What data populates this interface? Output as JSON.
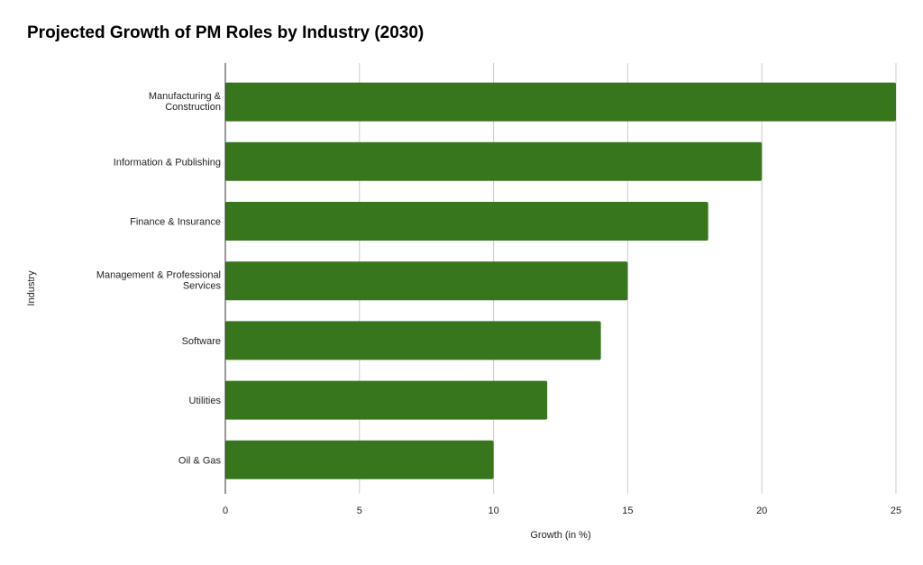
{
  "chart_data": {
    "type": "bar",
    "orientation": "horizontal",
    "title": "Projected Growth of PM Roles by Industry (2030)",
    "xlabel": "Growth (in %)",
    "ylabel": "Industry",
    "categories": [
      "Manufacturing & Construction",
      "Information & Publishing",
      "Finance & Insurance",
      "Management & Professional Services",
      "Software",
      "Utilities",
      "Oil & Gas"
    ],
    "values": [
      25,
      20,
      18,
      15,
      14,
      12,
      10
    ],
    "xlim": [
      0,
      25
    ],
    "xticks": [
      "0",
      "5",
      "10",
      "15",
      "20",
      "25"
    ],
    "grid": true,
    "legend": "none",
    "colors": {
      "bar": "#38761d",
      "grid": "#cccccc",
      "axis": "#333333"
    }
  }
}
